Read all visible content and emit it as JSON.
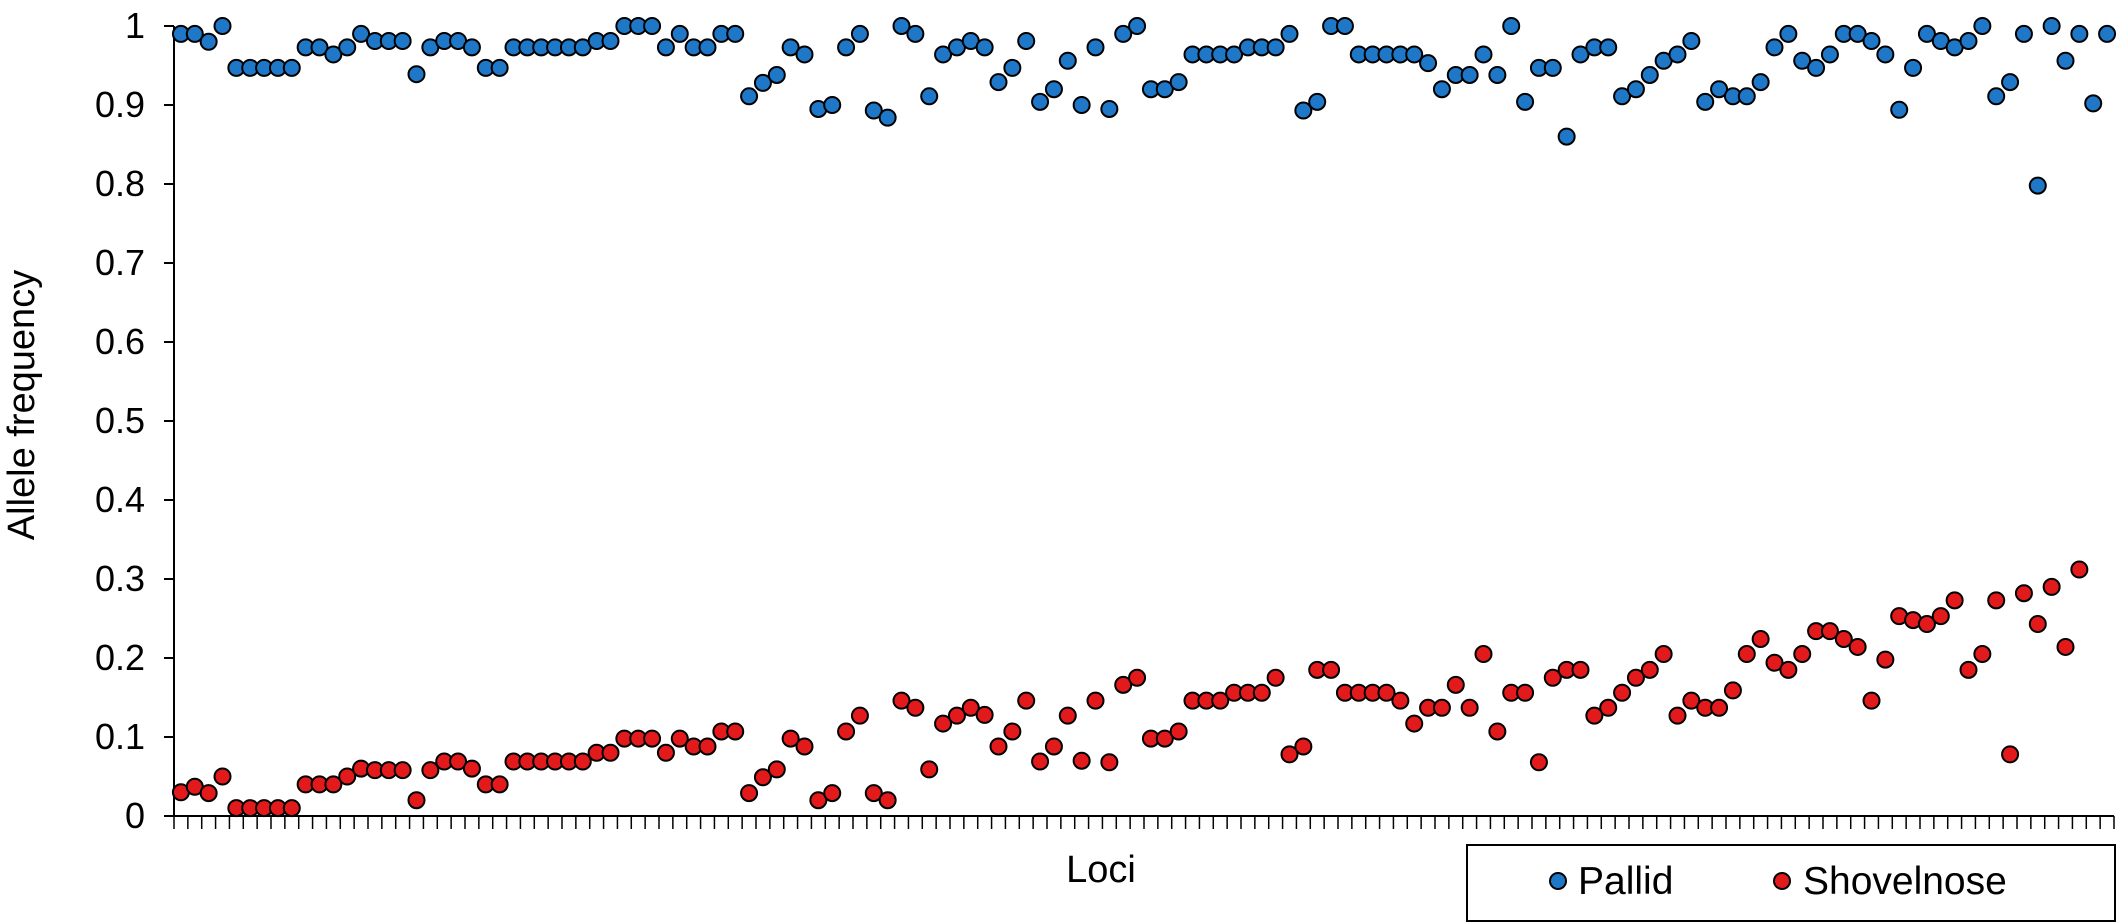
{
  "chart_data": {
    "type": "scatter",
    "xlabel": "Loci",
    "ylabel": "Allele frequency",
    "ylim": [
      0,
      1
    ],
    "yticks": [
      "0",
      "0.1",
      "0.2",
      "0.3",
      "0.4",
      "0.5",
      "0.6",
      "0.7",
      "0.8",
      "0.9",
      "1"
    ],
    "grid": false,
    "legend_position": "bottom-right",
    "series": [
      {
        "name": "Pallid",
        "color": "#1f77c8",
        "values": [
          0.99,
          0.99,
          0.98,
          1,
          0.947,
          0.947,
          0.947,
          0.947,
          0.947,
          0.973,
          0.973,
          0.964,
          0.973,
          0.99,
          0.981,
          0.981,
          0.981,
          0.939,
          0.973,
          0.981,
          0.981,
          0.973,
          0.947,
          0.947,
          0.973,
          0.973,
          0.973,
          0.973,
          0.973,
          0.973,
          0.981,
          0.981,
          1,
          1,
          1,
          0.973,
          0.99,
          0.973,
          0.973,
          0.99,
          0.99,
          0.911,
          0.928,
          0.938,
          0.973,
          0.964,
          0.895,
          0.9,
          0.973,
          0.99,
          0.893,
          0.884,
          1,
          0.99,
          0.911,
          0.964,
          0.973,
          0.981,
          0.973,
          0.929,
          0.947,
          0.981,
          0.904,
          0.92,
          0.956,
          0.9,
          0.973,
          0.895,
          0.99,
          1,
          0.92,
          0.92,
          0.929,
          0.964,
          0.964,
          0.964,
          0.964,
          0.973,
          0.973,
          0.973,
          0.99,
          0.893,
          0.904,
          1,
          1,
          0.964,
          0.964,
          0.964,
          0.964,
          0.964,
          0.953,
          0.92,
          0.938,
          0.938,
          0.964,
          0.938,
          1,
          0.904,
          0.947,
          0.947,
          0.86,
          0.964,
          0.973,
          0.973,
          0.911,
          0.92,
          0.938,
          0.956,
          0.964,
          0.981,
          0.904,
          0.92,
          0.911,
          0.911,
          0.929,
          0.973,
          0.99,
          0.956,
          0.947,
          0.964,
          0.99,
          0.99,
          0.981,
          0.964,
          0.894,
          0.947,
          0.99,
          0.981,
          0.973,
          0.981,
          1,
          0.911,
          0.929,
          0.99,
          0.798,
          1,
          0.956,
          0.99,
          0.902,
          0.99
        ]
      },
      {
        "name": "Shovelnose",
        "color": "#e31a1c",
        "values": [
          0.03,
          0.037,
          0.029,
          0.05,
          0.01,
          0.01,
          0.01,
          0.01,
          0.01,
          0.04,
          0.04,
          0.04,
          0.05,
          0.06,
          0.058,
          0.058,
          0.058,
          0.02,
          0.058,
          0.069,
          0.069,
          0.06,
          0.04,
          0.04,
          0.069,
          0.069,
          0.069,
          0.069,
          0.069,
          0.069,
          0.08,
          0.08,
          0.098,
          0.098,
          0.098,
          0.08,
          0.098,
          0.088,
          0.088,
          0.107,
          0.107,
          0.029,
          0.049,
          0.059,
          0.098,
          0.088,
          0.02,
          0.029,
          0.107,
          0.127,
          0.029,
          0.02,
          0.146,
          0.137,
          0.059,
          0.117,
          0.127,
          0.137,
          0.128,
          0.088,
          0.107,
          0.146,
          0.069,
          0.088,
          0.127,
          0.07,
          0.146,
          0.068,
          0.166,
          0.175,
          0.098,
          0.098,
          0.107,
          0.146,
          0.146,
          0.146,
          0.156,
          0.156,
          0.156,
          0.175,
          0.078,
          0.088,
          0.185,
          0.185,
          0.156,
          0.156,
          0.156,
          0.156,
          0.146,
          0.117,
          0.137,
          0.137,
          0.166,
          0.137,
          0.205,
          0.107,
          0.156,
          0.156,
          0.068,
          0.175,
          0.185,
          0.185,
          0.127,
          0.137,
          0.156,
          0.175,
          0.185,
          0.205,
          0.127,
          0.146,
          0.137,
          0.137,
          0.159,
          0.205,
          0.224,
          0.194,
          0.185,
          0.205,
          0.234,
          0.234,
          0.224,
          0.214,
          0.146,
          0.198,
          0.253,
          0.248,
          0.243,
          0.253,
          0.273,
          0.185,
          0.205,
          0.273,
          0.078,
          0.282,
          0.243,
          0.29,
          0.214,
          0.312
        ]
      }
    ]
  }
}
